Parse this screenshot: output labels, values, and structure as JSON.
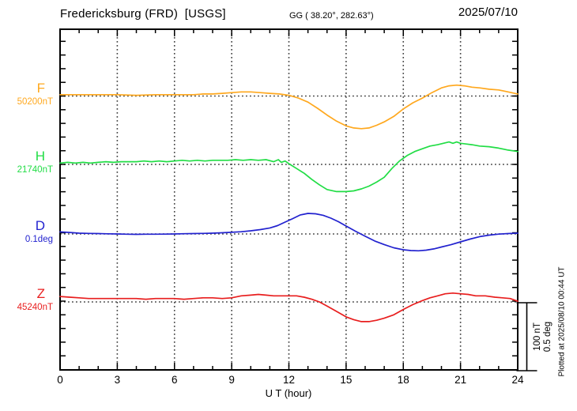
{
  "header": {
    "station_title": "Fredericksburg (FRD)  [USGS]",
    "coords": "GG ( 38.20°, 282.63°)",
    "date": "2025/07/10"
  },
  "side_note": "Plotted at 2025/08/10 00:44 UT",
  "scale_bar": {
    "nt": "100 nT",
    "deg": "0.5 deg"
  },
  "axis": {
    "xlabel": "U T (hour)",
    "x_min": 0,
    "x_max": 24,
    "hour_labels": [
      "0",
      "3",
      "6",
      "9",
      "12",
      "15",
      "18",
      "21",
      "24"
    ],
    "hour_label_values": [
      0,
      3,
      6,
      9,
      12,
      15,
      18,
      21,
      24
    ],
    "grid_hours": [
      3,
      6,
      9,
      12,
      15,
      18,
      21
    ],
    "grid": "dotted vertical every 3 h, dotted horizontal at each channel baseline"
  },
  "chart_data": {
    "type": "line",
    "title": "Fredericksburg (FRD) [USGS] magnetogram 2025/07/10",
    "xlabel": "U T (hour)",
    "x_range": [
      0,
      24
    ],
    "scale": "100 nT = 0.5 deg per scale bar",
    "series": [
      {
        "label": "F",
        "base_label": "50200nT",
        "unit": "nT",
        "base_value": 50200,
        "color": "#FFA81E",
        "points": [
          [
            0,
            50202
          ],
          [
            1,
            50202
          ],
          [
            2,
            50202
          ],
          [
            3,
            50202
          ],
          [
            4,
            50201
          ],
          [
            5,
            50202
          ],
          [
            6,
            50202
          ],
          [
            7,
            50202
          ],
          [
            7.5,
            50203
          ],
          [
            8,
            50203
          ],
          [
            8.5,
            50204
          ],
          [
            9,
            50205
          ],
          [
            9.5,
            50206
          ],
          [
            10,
            50206
          ],
          [
            10.5,
            50205
          ],
          [
            11,
            50204
          ],
          [
            11.5,
            50203
          ],
          [
            12,
            50201
          ],
          [
            12.5,
            50197
          ],
          [
            13,
            50191
          ],
          [
            13.5,
            50182
          ],
          [
            14,
            50172
          ],
          [
            14.5,
            50163
          ],
          [
            15,
            50156
          ],
          [
            15.4,
            50153
          ],
          [
            15.8,
            50152
          ],
          [
            16.2,
            50153
          ],
          [
            16.6,
            50157
          ],
          [
            17,
            50162
          ],
          [
            17.5,
            50170
          ],
          [
            18,
            50181
          ],
          [
            18.5,
            50190
          ],
          [
            19,
            50197
          ],
          [
            19.5,
            50205
          ],
          [
            20,
            50212
          ],
          [
            20.4,
            50215
          ],
          [
            20.8,
            50216
          ],
          [
            21.2,
            50215
          ],
          [
            21.6,
            50213
          ],
          [
            22,
            50212
          ],
          [
            22.5,
            50210
          ],
          [
            23,
            50209
          ],
          [
            23.5,
            50206
          ],
          [
            24,
            50203
          ]
        ]
      },
      {
        "label": "H",
        "base_label": "21740nT",
        "unit": "nT",
        "base_value": 21740,
        "color": "#21DD45",
        "points": [
          [
            0,
            21742
          ],
          [
            0.4,
            21743
          ],
          [
            0.8,
            21742
          ],
          [
            1.2,
            21743
          ],
          [
            1.6,
            21742
          ],
          [
            2,
            21743
          ],
          [
            2.4,
            21744
          ],
          [
            2.8,
            21743
          ],
          [
            3.2,
            21744
          ],
          [
            3.6,
            21744
          ],
          [
            4,
            21744
          ],
          [
            4.4,
            21745
          ],
          [
            4.8,
            21744
          ],
          [
            5.2,
            21745
          ],
          [
            5.6,
            21744
          ],
          [
            6,
            21745
          ],
          [
            6.4,
            21746
          ],
          [
            6.8,
            21745
          ],
          [
            7.2,
            21746
          ],
          [
            7.6,
            21745
          ],
          [
            8,
            21746
          ],
          [
            8.4,
            21746
          ],
          [
            8.8,
            21746
          ],
          [
            9.2,
            21747
          ],
          [
            9.6,
            21746
          ],
          [
            10,
            21747
          ],
          [
            10.4,
            21746
          ],
          [
            10.8,
            21747
          ],
          [
            11.2,
            21744
          ],
          [
            11.45,
            21747
          ],
          [
            11.6,
            21743
          ],
          [
            11.8,
            21745
          ],
          [
            12,
            21741
          ],
          [
            12.4,
            21734
          ],
          [
            12.8,
            21727
          ],
          [
            13.2,
            21718
          ],
          [
            13.6,
            21710
          ],
          [
            14,
            21703
          ],
          [
            14.5,
            21700
          ],
          [
            15,
            21700
          ],
          [
            15.4,
            21701
          ],
          [
            15.8,
            21704
          ],
          [
            16.2,
            21708
          ],
          [
            16.6,
            21714
          ],
          [
            17,
            21721
          ],
          [
            17.4,
            21734
          ],
          [
            17.8,
            21745
          ],
          [
            18.2,
            21753
          ],
          [
            18.6,
            21759
          ],
          [
            19,
            21763
          ],
          [
            19.4,
            21767
          ],
          [
            19.8,
            21769
          ],
          [
            20.1,
            21771
          ],
          [
            20.4,
            21773
          ],
          [
            20.6,
            21771
          ],
          [
            20.8,
            21773
          ],
          [
            21,
            21771
          ],
          [
            21.3,
            21770
          ],
          [
            21.6,
            21769
          ],
          [
            22,
            21767
          ],
          [
            22.5,
            21766
          ],
          [
            23,
            21764
          ],
          [
            23.5,
            21761
          ],
          [
            24,
            21759
          ]
        ]
      },
      {
        "label": "D",
        "base_label": "0.1deg",
        "unit": "deg",
        "base_value": 0.1,
        "color": "#2222CF",
        "points": [
          [
            0,
            0.115
          ],
          [
            0.5,
            0.111
          ],
          [
            1,
            0.106
          ],
          [
            1.5,
            0.104
          ],
          [
            2,
            0.103
          ],
          [
            2.5,
            0.101
          ],
          [
            3,
            0.1
          ],
          [
            3.5,
            0.098
          ],
          [
            4,
            0.097
          ],
          [
            4.5,
            0.098
          ],
          [
            5,
            0.098
          ],
          [
            5.5,
            0.099
          ],
          [
            6,
            0.1
          ],
          [
            6.5,
            0.102
          ],
          [
            7,
            0.103
          ],
          [
            7.5,
            0.104
          ],
          [
            8,
            0.106
          ],
          [
            8.5,
            0.109
          ],
          [
            9,
            0.112
          ],
          [
            9.5,
            0.116
          ],
          [
            10,
            0.123
          ],
          [
            10.5,
            0.132
          ],
          [
            11,
            0.144
          ],
          [
            11.4,
            0.161
          ],
          [
            11.8,
            0.187
          ],
          [
            12.2,
            0.213
          ],
          [
            12.6,
            0.24
          ],
          [
            13,
            0.251
          ],
          [
            13.4,
            0.248
          ],
          [
            13.8,
            0.237
          ],
          [
            14.2,
            0.216
          ],
          [
            14.6,
            0.19
          ],
          [
            15,
            0.158
          ],
          [
            15.5,
            0.12
          ],
          [
            16,
            0.083
          ],
          [
            16.5,
            0.048
          ],
          [
            17,
            0.022
          ],
          [
            17.5,
            -0.002
          ],
          [
            18,
            -0.016
          ],
          [
            18.4,
            -0.022
          ],
          [
            18.8,
            -0.024
          ],
          [
            19.2,
            -0.019
          ],
          [
            19.6,
            -0.01
          ],
          [
            20,
            0.004
          ],
          [
            20.5,
            0.021
          ],
          [
            21,
            0.042
          ],
          [
            21.5,
            0.062
          ],
          [
            22,
            0.08
          ],
          [
            22.5,
            0.091
          ],
          [
            23,
            0.099
          ],
          [
            23.5,
            0.103
          ],
          [
            24,
            0.106
          ]
        ]
      },
      {
        "label": "Z",
        "base_label": "45240nT",
        "unit": "nT",
        "base_value": 45240,
        "color": "#E81E1E",
        "points": [
          [
            0,
            45248
          ],
          [
            0.5,
            45247
          ],
          [
            1,
            45246
          ],
          [
            1.5,
            45245
          ],
          [
            2,
            45245
          ],
          [
            2.5,
            45245
          ],
          [
            3,
            45245
          ],
          [
            3.5,
            45245
          ],
          [
            4,
            45245
          ],
          [
            4.5,
            45244
          ],
          [
            5,
            45245
          ],
          [
            5.5,
            45245
          ],
          [
            6,
            45245
          ],
          [
            6.5,
            45244
          ],
          [
            7,
            45245
          ],
          [
            7.5,
            45246
          ],
          [
            8,
            45246
          ],
          [
            8.5,
            45245
          ],
          [
            9,
            45246
          ],
          [
            9.5,
            45249
          ],
          [
            10,
            45250
          ],
          [
            10.4,
            45251
          ],
          [
            10.8,
            45250
          ],
          [
            11.2,
            45249
          ],
          [
            11.6,
            45249
          ],
          [
            12,
            45249
          ],
          [
            12.4,
            45249
          ],
          [
            12.8,
            45247
          ],
          [
            13.2,
            45244
          ],
          [
            13.6,
            45240
          ],
          [
            14,
            45234
          ],
          [
            14.5,
            45226
          ],
          [
            15,
            45218
          ],
          [
            15.4,
            45214
          ],
          [
            15.8,
            45211
          ],
          [
            16.2,
            45211
          ],
          [
            16.6,
            45213
          ],
          [
            17,
            45216
          ],
          [
            17.5,
            45221
          ],
          [
            18,
            45229
          ],
          [
            18.5,
            45236
          ],
          [
            19,
            45242
          ],
          [
            19.4,
            45246
          ],
          [
            19.8,
            45249
          ],
          [
            20.2,
            45252
          ],
          [
            20.6,
            45253
          ],
          [
            21,
            45252
          ],
          [
            21.4,
            45251
          ],
          [
            21.8,
            45249
          ],
          [
            22.3,
            45249
          ],
          [
            22.8,
            45247
          ],
          [
            23.2,
            45246
          ],
          [
            23.6,
            45245
          ],
          [
            24,
            45241
          ]
        ]
      }
    ]
  }
}
